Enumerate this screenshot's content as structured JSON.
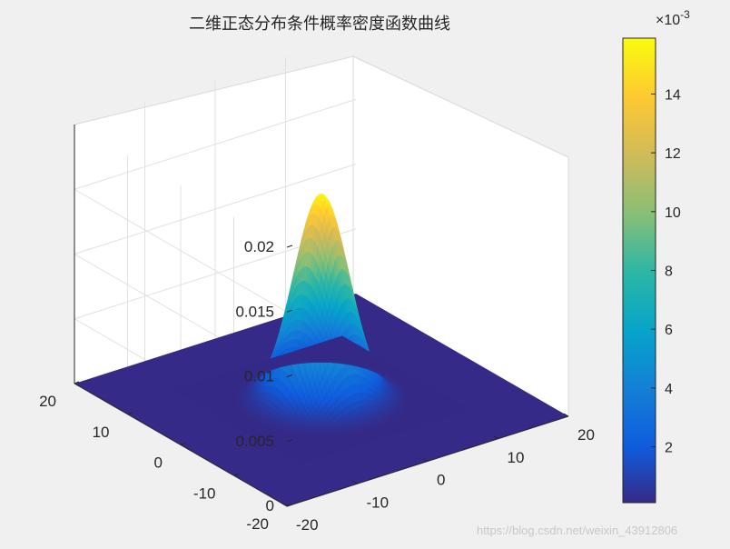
{
  "chart_data": {
    "type": "surface",
    "title": "二维正态分布条件概率密度函数曲线",
    "x_ticks": [
      "-20",
      "-10",
      "0",
      "10",
      "20"
    ],
    "y_ticks": [
      "-20",
      "-10",
      "0",
      "10",
      "20"
    ],
    "z_ticks": [
      "0",
      "0.005",
      "0.01",
      "0.015",
      "0.02"
    ],
    "xlim": [
      -20,
      20
    ],
    "ylim": [
      -20,
      20
    ],
    "zlim": [
      0,
      0.02
    ],
    "surface": {
      "function": "bivariate normal density",
      "mu_x": 0,
      "mu_y": 0,
      "sigma_x": 3.16,
      "sigma_y": 3.16,
      "peak_value": 0.0159
    },
    "colorbar": {
      "colormap": "parula",
      "exponent_label": "×10",
      "exponent_power": "-3",
      "ticks": [
        "2",
        "4",
        "6",
        "8",
        "10",
        "12",
        "14"
      ],
      "tick_values": [
        2,
        4,
        6,
        8,
        10,
        12,
        14
      ],
      "range": [
        0.1,
        15.9
      ]
    },
    "grid": true
  },
  "watermark": "https://blog.csdn.net/weixin_43912806"
}
